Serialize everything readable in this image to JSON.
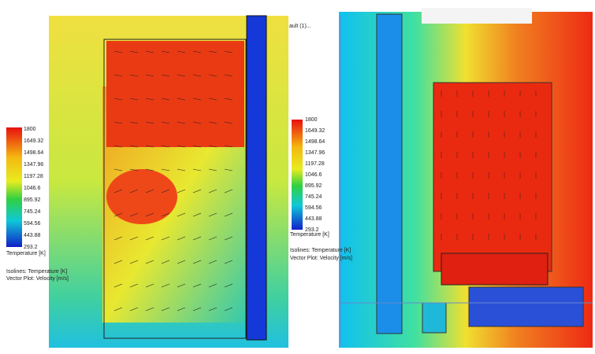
{
  "window_title": "ault (1)...",
  "left_plot": {
    "legend": {
      "ticks": [
        "1800",
        "1649.32",
        "1498.64",
        "1347.96",
        "1197.28",
        "1046.6",
        "895.92",
        "745.24",
        "594.56",
        "443.88",
        "293.2"
      ],
      "title": "Temperature [K]"
    },
    "notes": [
      "Isolines: Temperature [K]",
      "Vector Plot: Velocity [m/s]"
    ]
  },
  "right_plot": {
    "legend": {
      "ticks": [
        "1800",
        "1649.32",
        "1498.64",
        "1347.96",
        "1197.28",
        "1046.6",
        "895.92",
        "745.24",
        "594.56",
        "443.88",
        "293.2"
      ],
      "title": "Temperature [K]"
    },
    "notes": [
      "Isolines: Temperature [K]",
      "Vector Plot: Velocity [m/s]"
    ]
  }
}
